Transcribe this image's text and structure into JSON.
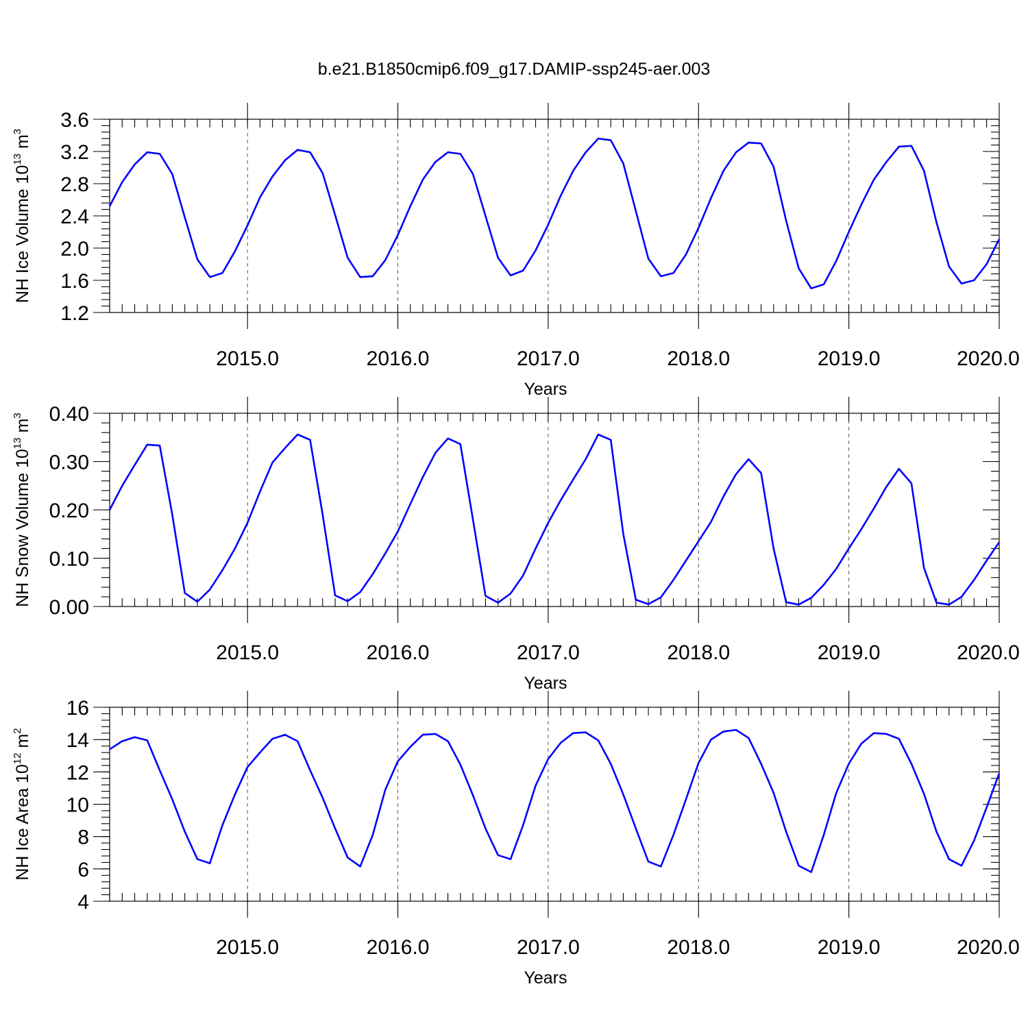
{
  "title": "b.e21.B1850cmip6.f09_g17.DAMIP-ssp245-aer.003",
  "colors": {
    "series": "#0000ff",
    "axes": "#000000",
    "grid": "#555555"
  },
  "chart_data": [
    {
      "type": "line",
      "name": "nh-ice-volume",
      "ylabel": "NH Ice Volume",
      "ylabel_unit_base": "10",
      "ylabel_unit_exp": "13",
      "ylabel_unit_rest": " m",
      "ylabel_unit_pow": "3",
      "xlabel": "Years",
      "xlim": [
        2014.083,
        2020.0
      ],
      "ylim": [
        1.2,
        3.6
      ],
      "yticks": [
        1.2,
        1.6,
        2.0,
        2.4,
        2.8,
        3.2,
        3.6
      ],
      "ytick_labels": [
        "1.2",
        "1.6",
        "2.0",
        "2.4",
        "2.8",
        "3.2",
        "3.6"
      ],
      "xticks": [
        2015.0,
        2016.0,
        2017.0,
        2018.0,
        2019.0,
        2020.0
      ],
      "xtick_labels": [
        "2015.0",
        "2016.0",
        "2017.0",
        "2018.0",
        "2019.0",
        "2020.0"
      ],
      "grid_x": true,
      "x_start": 2014.083,
      "x_step": 0.08333,
      "values": [
        2.52,
        2.82,
        3.04,
        3.19,
        3.17,
        2.92,
        2.38,
        1.86,
        1.64,
        1.69,
        1.96,
        2.28,
        2.63,
        2.89,
        3.09,
        3.22,
        3.19,
        2.93,
        2.41,
        1.88,
        1.64,
        1.65,
        1.85,
        2.16,
        2.52,
        2.85,
        3.07,
        3.19,
        3.17,
        2.92,
        2.4,
        1.88,
        1.66,
        1.72,
        1.97,
        2.29,
        2.65,
        2.96,
        3.19,
        3.36,
        3.34,
        3.05,
        2.46,
        1.87,
        1.65,
        1.69,
        1.92,
        2.25,
        2.62,
        2.96,
        3.19,
        3.31,
        3.3,
        3.01,
        2.34,
        1.75,
        1.5,
        1.55,
        1.84,
        2.2,
        2.54,
        2.85,
        3.07,
        3.26,
        3.27,
        2.96,
        2.32,
        1.77,
        1.56,
        1.6,
        1.8,
        2.11
      ]
    },
    {
      "type": "line",
      "name": "nh-snow-volume",
      "ylabel": "NH Snow Volume",
      "ylabel_unit_base": "10",
      "ylabel_unit_exp": "13",
      "ylabel_unit_rest": " m",
      "ylabel_unit_pow": "3",
      "xlabel": "Years",
      "xlim": [
        2014.083,
        2020.0
      ],
      "ylim": [
        0.0,
        0.4
      ],
      "yticks": [
        0.0,
        0.1,
        0.2,
        0.3,
        0.4
      ],
      "ytick_labels": [
        "0.00",
        "0.10",
        "0.20",
        "0.30",
        "0.40"
      ],
      "xticks": [
        2015.0,
        2016.0,
        2017.0,
        2018.0,
        2019.0,
        2020.0
      ],
      "xtick_labels": [
        "2015.0",
        "2016.0",
        "2017.0",
        "2018.0",
        "2019.0",
        "2020.0"
      ],
      "grid_x": true,
      "x_start": 2014.083,
      "x_step": 0.08333,
      "values": [
        0.2,
        0.25,
        0.293,
        0.335,
        0.333,
        0.19,
        0.028,
        0.01,
        0.035,
        0.075,
        0.12,
        0.173,
        0.238,
        0.298,
        0.328,
        0.356,
        0.345,
        0.19,
        0.023,
        0.011,
        0.03,
        0.067,
        0.11,
        0.155,
        0.212,
        0.268,
        0.318,
        0.348,
        0.336,
        0.18,
        0.022,
        0.008,
        0.027,
        0.064,
        0.12,
        0.173,
        0.22,
        0.263,
        0.305,
        0.356,
        0.345,
        0.15,
        0.014,
        0.005,
        0.019,
        0.055,
        0.095,
        0.135,
        0.175,
        0.228,
        0.274,
        0.305,
        0.276,
        0.12,
        0.009,
        0.004,
        0.018,
        0.045,
        0.078,
        0.12,
        0.16,
        0.203,
        0.248,
        0.285,
        0.255,
        0.08,
        0.008,
        0.004,
        0.02,
        0.055,
        0.095,
        0.133
      ]
    },
    {
      "type": "line",
      "name": "nh-ice-area",
      "ylabel": "NH Ice Area",
      "ylabel_unit_base": "10",
      "ylabel_unit_exp": "12",
      "ylabel_unit_rest": " m",
      "ylabel_unit_pow": "2",
      "xlabel": "Years",
      "xlim": [
        2014.083,
        2020.0
      ],
      "ylim": [
        4,
        16
      ],
      "yticks": [
        4,
        6,
        8,
        10,
        12,
        14,
        16
      ],
      "ytick_labels": [
        "4",
        "6",
        "8",
        "10",
        "12",
        "14",
        "16"
      ],
      "xticks": [
        2015.0,
        2016.0,
        2017.0,
        2018.0,
        2019.0,
        2020.0
      ],
      "xtick_labels": [
        "2015.0",
        "2016.0",
        "2017.0",
        "2018.0",
        "2019.0",
        "2020.0"
      ],
      "grid_x": true,
      "x_start": 2014.083,
      "x_step": 0.08333,
      "values": [
        13.4,
        13.9,
        14.15,
        13.95,
        12.1,
        10.3,
        8.3,
        6.6,
        6.35,
        8.7,
        10.6,
        12.3,
        13.2,
        14.05,
        14.3,
        13.9,
        12.1,
        10.4,
        8.5,
        6.7,
        6.15,
        8.1,
        10.9,
        12.65,
        13.55,
        14.3,
        14.35,
        13.9,
        12.45,
        10.55,
        8.5,
        6.85,
        6.6,
        8.7,
        11.15,
        12.8,
        13.8,
        14.4,
        14.45,
        13.95,
        12.5,
        10.6,
        8.5,
        6.45,
        6.15,
        8.1,
        10.3,
        12.55,
        14.0,
        14.5,
        14.6,
        14.1,
        12.5,
        10.7,
        8.3,
        6.2,
        5.8,
        8.1,
        10.7,
        12.5,
        13.75,
        14.4,
        14.35,
        14.05,
        12.5,
        10.65,
        8.3,
        6.6,
        6.2,
        7.75,
        9.8,
        11.9
      ]
    }
  ]
}
